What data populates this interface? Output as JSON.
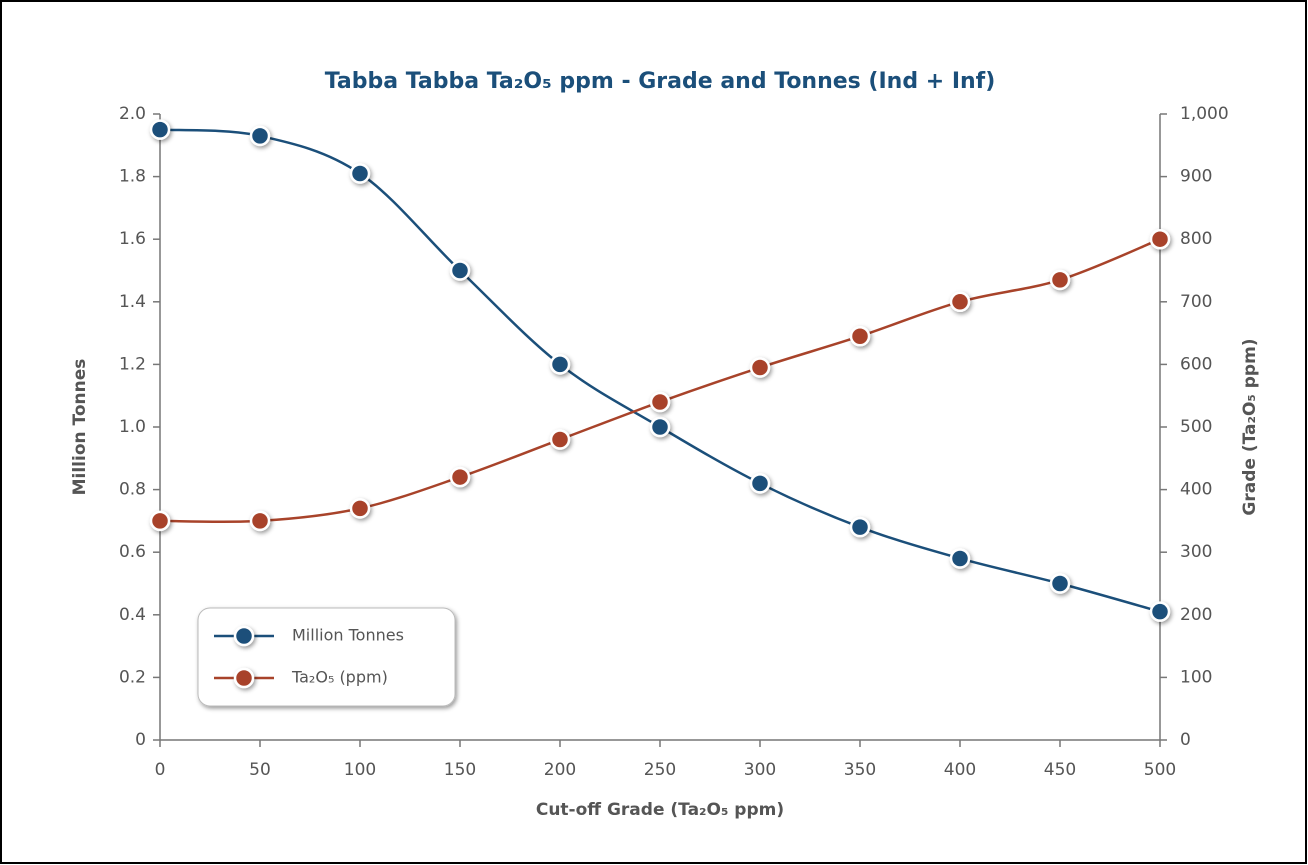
{
  "chart_data": {
    "type": "line",
    "title": "Tabba Tabba Ta₂O₅ ppm - Grade and Tonnes (Ind + Inf)",
    "x_label": "Cut-off Grade (Ta₂O₅ ppm)",
    "y_label": "Million Tonnes",
    "y2_label": "Grade (Ta₂O₅ ppm)",
    "x": [
      0,
      50,
      100,
      150,
      200,
      250,
      300,
      350,
      400,
      450,
      500
    ],
    "series": [
      {
        "name": "Million Tonnes",
        "color": "#1b4f7a",
        "values": [
          1.95,
          1.93,
          1.81,
          1.5,
          1.2,
          1.0,
          0.82,
          0.68,
          0.58,
          0.5,
          0.41
        ]
      },
      {
        "name": "Ta₂O₅ (ppm)",
        "color": "#a8432a",
        "axis": "y2",
        "values": [
          350,
          350,
          370,
          420,
          480,
          540,
          595,
          645,
          700,
          735,
          800
        ]
      }
    ],
    "xlim": [
      0,
      500
    ],
    "xticks": [
      0,
      50,
      100,
      150,
      200,
      250,
      300,
      350,
      400,
      450,
      500
    ],
    "ylim": [
      0,
      2
    ],
    "yticks": [
      0,
      0.2,
      0.4,
      0.6,
      0.8,
      {
        "value": 1,
        "label": "1.0"
      },
      1.2,
      1.4,
      1.6,
      1.8,
      {
        "value": 2,
        "label": "2.0"
      }
    ],
    "y2lim": [
      0,
      1000
    ],
    "y2ticks": [
      0,
      100,
      200,
      300,
      400,
      500,
      600,
      700,
      800,
      900,
      {
        "value": 1000,
        "label": "1,000"
      }
    ],
    "legend": "lower left",
    "grid": false
  }
}
